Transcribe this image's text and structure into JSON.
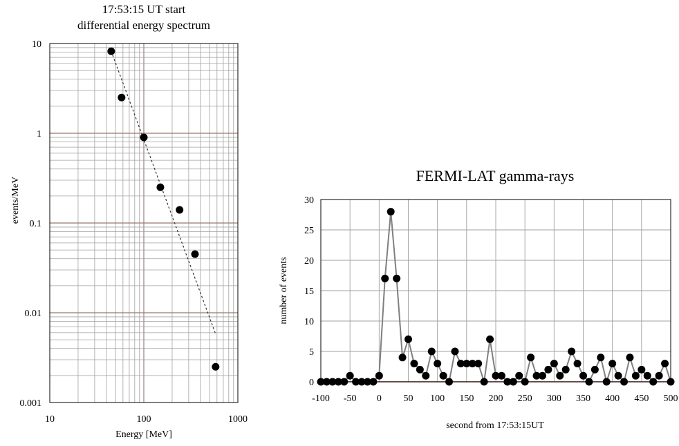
{
  "chart_data": [
    {
      "type": "scatter",
      "title_line1": "17:53:15 UT start",
      "title_line2": "differential energy spectrum",
      "xlabel": "Energy [MeV]",
      "ylabel": "events/MeV",
      "xscale": "log",
      "yscale": "log",
      "xlim": [
        10,
        1000
      ],
      "ylim": [
        0.001,
        10
      ],
      "xticks": [
        "10",
        "100",
        "1000"
      ],
      "yticks": [
        "0.001",
        "0.01",
        "0.1",
        "1",
        "10"
      ],
      "grid": true,
      "points": [
        {
          "x": 45,
          "y": 8.2
        },
        {
          "x": 58,
          "y": 2.5
        },
        {
          "x": 100,
          "y": 0.9
        },
        {
          "x": 150,
          "y": 0.25
        },
        {
          "x": 240,
          "y": 0.14
        },
        {
          "x": 350,
          "y": 0.045
        },
        {
          "x": 580,
          "y": 0.0025
        }
      ],
      "fit_line": {
        "x": [
          45,
          580
        ],
        "y": [
          8.2,
          0.0058
        ]
      },
      "colors": {
        "points": "#000000",
        "major_grid": "#8b3a2e",
        "minor_grid": "#a0a0a0",
        "fit": "#333333"
      }
    },
    {
      "type": "line",
      "title": "FERMI-LAT gamma-rays",
      "xlabel": "second from 17:53:15UT",
      "ylabel": "number of events",
      "xlim": [
        -100,
        500
      ],
      "ylim": [
        0,
        30
      ],
      "xticks": [
        "-100",
        "-50",
        "0",
        "50",
        "100",
        "150",
        "200",
        "250",
        "300",
        "350",
        "400",
        "450",
        "500"
      ],
      "yticks": [
        "0",
        "5",
        "10",
        "15",
        "20",
        "25",
        "30"
      ],
      "grid": true,
      "x": [
        -100,
        -90,
        -80,
        -70,
        -60,
        -50,
        -40,
        -30,
        -20,
        -10,
        0,
        10,
        20,
        30,
        40,
        50,
        60,
        70,
        80,
        90,
        100,
        110,
        120,
        130,
        140,
        150,
        160,
        170,
        180,
        190,
        200,
        210,
        220,
        230,
        240,
        250,
        260,
        270,
        280,
        290,
        300,
        310,
        320,
        330,
        340,
        350,
        360,
        370,
        380,
        390,
        400,
        410,
        420,
        430,
        440,
        450,
        460,
        470,
        480,
        490,
        500
      ],
      "values": [
        0,
        0,
        0,
        0,
        0,
        1,
        0,
        0,
        0,
        0,
        1,
        17,
        28,
        17,
        4,
        7,
        3,
        2,
        1,
        5,
        3,
        1,
        0,
        5,
        3,
        3,
        3,
        3,
        0,
        7,
        1,
        1,
        0,
        0,
        1,
        0,
        4,
        1,
        1,
        2,
        3,
        1,
        2,
        5,
        3,
        1,
        0,
        2,
        4,
        0,
        3,
        1,
        0,
        4,
        1,
        2,
        1,
        0,
        1,
        3,
        0
      ],
      "colors": {
        "points": "#000000",
        "line": "#7f7f7f",
        "zero_line": "#8b3a2e",
        "grid": "#a0a0a0"
      }
    }
  ]
}
